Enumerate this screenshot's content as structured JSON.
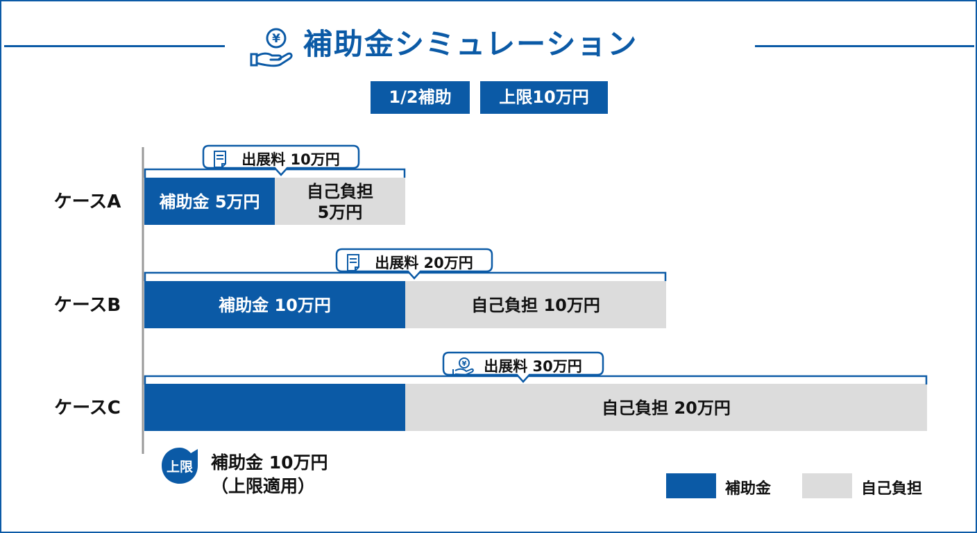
{
  "header": {
    "title": "補助金シミュレーション",
    "badges": [
      "1/2補助",
      "上限10万円"
    ]
  },
  "colors": {
    "subsidy": "#0b5aa6",
    "self": "#dcdcdc",
    "accent": "#0b5aa6"
  },
  "chart_data": {
    "type": "bar",
    "orientation": "horizontal-stacked",
    "unit": "万円",
    "categories": [
      "ケースA",
      "ケースB",
      "ケースC"
    ],
    "series": [
      {
        "name": "補助金",
        "values": [
          5,
          10,
          10
        ]
      },
      {
        "name": "自己負担",
        "values": [
          5,
          10,
          20
        ]
      }
    ],
    "totals": [
      10,
      20,
      30
    ],
    "xlim": [
      0,
      30
    ],
    "segment_labels": [
      {
        "subsidy": "補助金 5万円",
        "self_line1": "自己負担",
        "self_line2": "5万円"
      },
      {
        "subsidy": "補助金 10万円",
        "self_line1": "自己負担 10万円",
        "self_line2": ""
      },
      {
        "subsidy": "",
        "self_line1": "自己負担 20万円",
        "self_line2": ""
      }
    ],
    "total_callouts": [
      "出展料 10万円",
      "出展料 20万円",
      "出展料 30万円"
    ],
    "callout_icons": [
      "document-icon",
      "document-icon",
      "yen-hand-icon"
    ],
    "legend": {
      "position": "bottom-right",
      "items": [
        "補助金",
        "自己負担"
      ]
    }
  },
  "note": {
    "pin_label": "上限",
    "line1": "補助金 10万円",
    "line2": "（上限適用）"
  }
}
